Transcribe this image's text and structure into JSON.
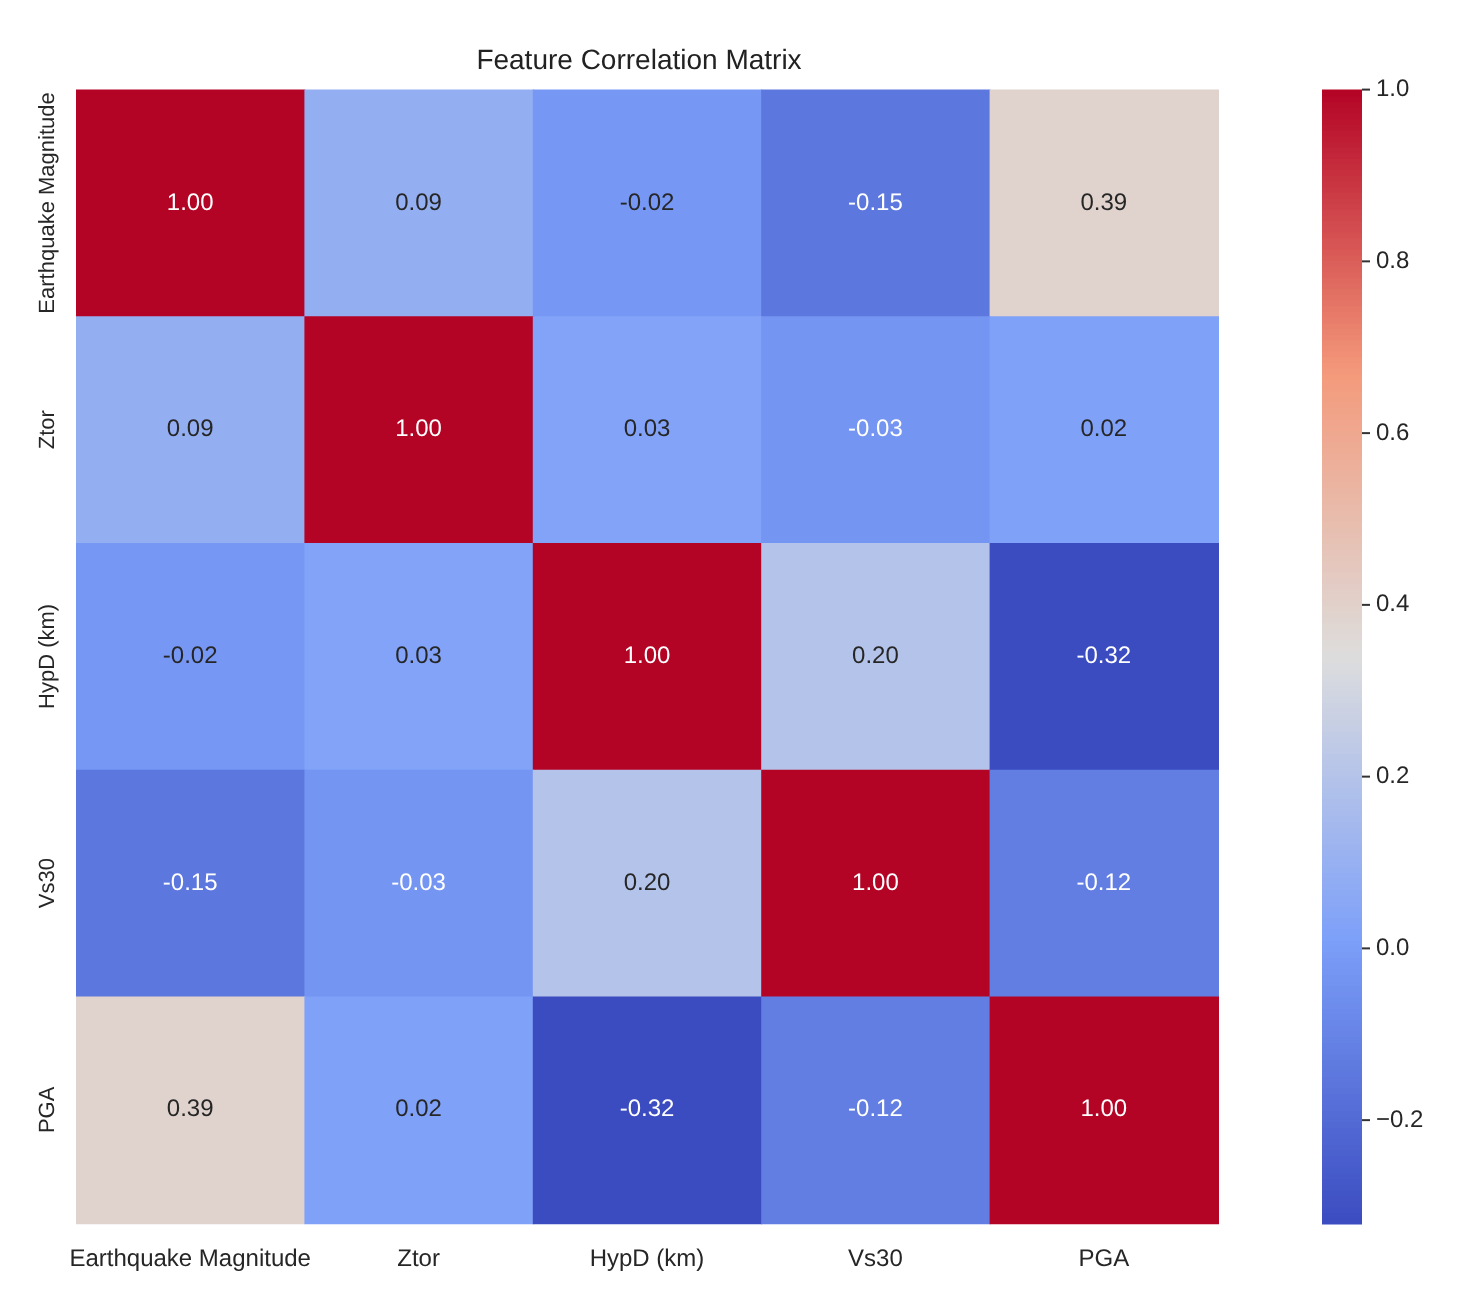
{
  "chart_data": {
    "type": "heatmap",
    "title": "Feature Correlation Matrix",
    "categories": [
      "Earthquake Magnitude",
      "Ztor",
      "HypD (km)",
      "Vs30",
      "PGA"
    ],
    "y_categories": [
      "Earthquake Magnitude",
      "Ztor",
      "HypD (km)",
      "Vs30",
      "PGA"
    ],
    "cells": [
      [
        1.0,
        0.09,
        -0.02,
        -0.15,
        0.39
      ],
      [
        0.09,
        1.0,
        0.03,
        -0.03,
        0.02
      ],
      [
        -0.02,
        0.03,
        1.0,
        0.2,
        -0.32
      ],
      [
        -0.15,
        -0.03,
        0.2,
        1.0,
        -0.12
      ],
      [
        0.39,
        0.02,
        -0.32,
        -0.12,
        1.0
      ]
    ],
    "cell_labels": [
      [
        "1.00",
        "0.09",
        "-0.02",
        "-0.15",
        "0.39"
      ],
      [
        "0.09",
        "1.00",
        "0.03",
        "-0.03",
        "0.02"
      ],
      [
        "-0.02",
        "0.03",
        "1.00",
        "0.20",
        "-0.32"
      ],
      [
        "-0.15",
        "-0.03",
        "0.20",
        "1.00",
        "-0.12"
      ],
      [
        "0.39",
        "0.02",
        "-0.32",
        "-0.12",
        "1.00"
      ]
    ],
    "clim": [
      -0.32,
      1.0
    ],
    "cticks": [
      {
        "value": -0.2,
        "label": "−0.2"
      },
      {
        "value": 0,
        "label": "0.0"
      },
      0.2,
      0.4,
      0.6,
      0.8,
      {
        "value": 1,
        "label": "1.0"
      }
    ]
  }
}
